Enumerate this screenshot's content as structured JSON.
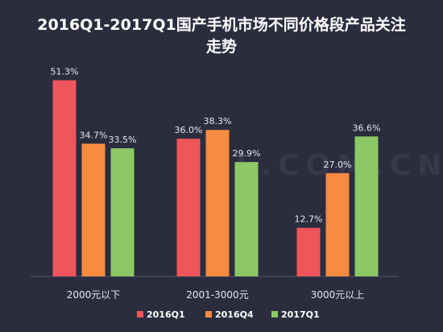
{
  "chart_data": {
    "type": "bar",
    "title_line1": "2016Q1-2017Q1国产手机市场不同价格段产品关注",
    "title_line2": "走势",
    "categories": [
      "2000元以下",
      "2001-3000元",
      "3000元以上"
    ],
    "series": [
      {
        "name": "2016Q1",
        "color": "#f0555b",
        "values": [
          51.3,
          36.0,
          12.7
        ]
      },
      {
        "name": "2016Q4",
        "color": "#f78b3f",
        "values": [
          34.7,
          38.3,
          27.0
        ]
      },
      {
        "name": "2017Q1",
        "color": "#8cc865",
        "values": [
          33.5,
          29.9,
          36.6
        ]
      }
    ],
    "value_suffix": "%",
    "ylim": [
      0,
      55
    ],
    "grid": false,
    "legend_position": "bottom-center"
  },
  "watermark": "ZOL.COM.CN"
}
